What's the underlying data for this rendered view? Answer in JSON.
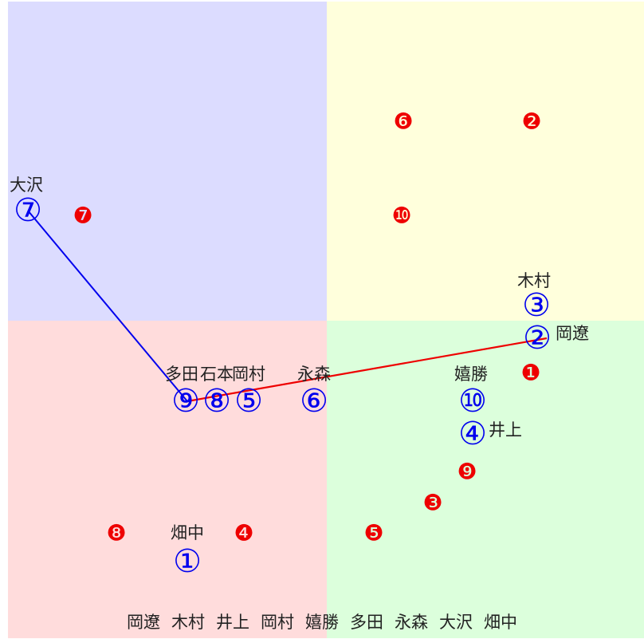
{
  "quadrant_colors": {
    "top_left": "#dcdcff",
    "top_right": "#ffffdc",
    "bottom_left": "#ffdcdc",
    "bottom_right": "#dcffdc"
  },
  "colors": {
    "blue": "#0000ee",
    "red": "#ee0000",
    "text": "#222222"
  },
  "blue_markers": [
    {
      "glyph": "①",
      "label": "畑中"
    },
    {
      "glyph": "②",
      "label": "岡遼"
    },
    {
      "glyph": "③",
      "label": "木村"
    },
    {
      "glyph": "④",
      "label": "井上"
    },
    {
      "glyph": "⑤",
      "label": "岡村"
    },
    {
      "glyph": "⑥",
      "label": "永森"
    },
    {
      "glyph": "⑦",
      "label": "大沢"
    },
    {
      "glyph": "⑧",
      "label": "石本"
    },
    {
      "glyph": "⑨",
      "label": "多田"
    },
    {
      "glyph": "⑩",
      "label": "嬉勝"
    }
  ],
  "red_markers": [
    "❶",
    "❷",
    "❸",
    "❹",
    "❺",
    "❻",
    "❼",
    "❽",
    "❾",
    "❿"
  ],
  "bottom_names": [
    "岡遼",
    "木村",
    "井上",
    "岡村",
    "嬉勝",
    "多田",
    "永森",
    "大沢",
    "畑中"
  ]
}
